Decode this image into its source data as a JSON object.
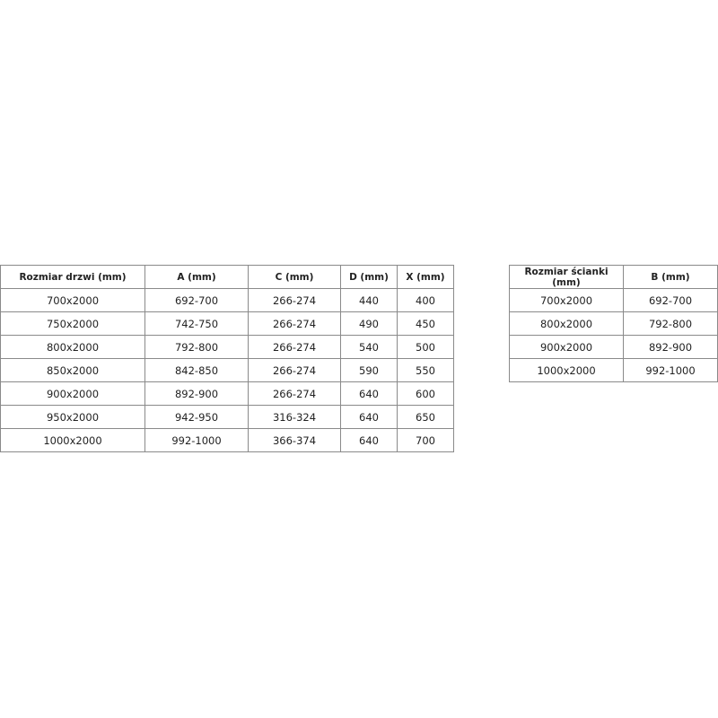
{
  "door_table": {
    "headers": [
      "Rozmiar drzwi (mm)",
      "A (mm)",
      "C (mm)",
      "D (mm)",
      "X (mm)"
    ],
    "rows": [
      [
        "700x2000",
        "692-700",
        "266-274",
        "440",
        "400"
      ],
      [
        "750x2000",
        "742-750",
        "266-274",
        "490",
        "450"
      ],
      [
        "800x2000",
        "792-800",
        "266-274",
        "540",
        "500"
      ],
      [
        "850x2000",
        "842-850",
        "266-274",
        "590",
        "550"
      ],
      [
        "900x2000",
        "892-900",
        "266-274",
        "640",
        "600"
      ],
      [
        "950x2000",
        "942-950",
        "316-324",
        "640",
        "650"
      ],
      [
        "1000x2000",
        "992-1000",
        "366-374",
        "640",
        "700"
      ]
    ]
  },
  "wall_table": {
    "headers": [
      "Rozmiar ścianki (mm)",
      "B (mm)"
    ],
    "rows": [
      [
        "700x2000",
        "692-700"
      ],
      [
        "800x2000",
        "792-800"
      ],
      [
        "900x2000",
        "892-900"
      ],
      [
        "1000x2000",
        "992-1000"
      ]
    ]
  }
}
